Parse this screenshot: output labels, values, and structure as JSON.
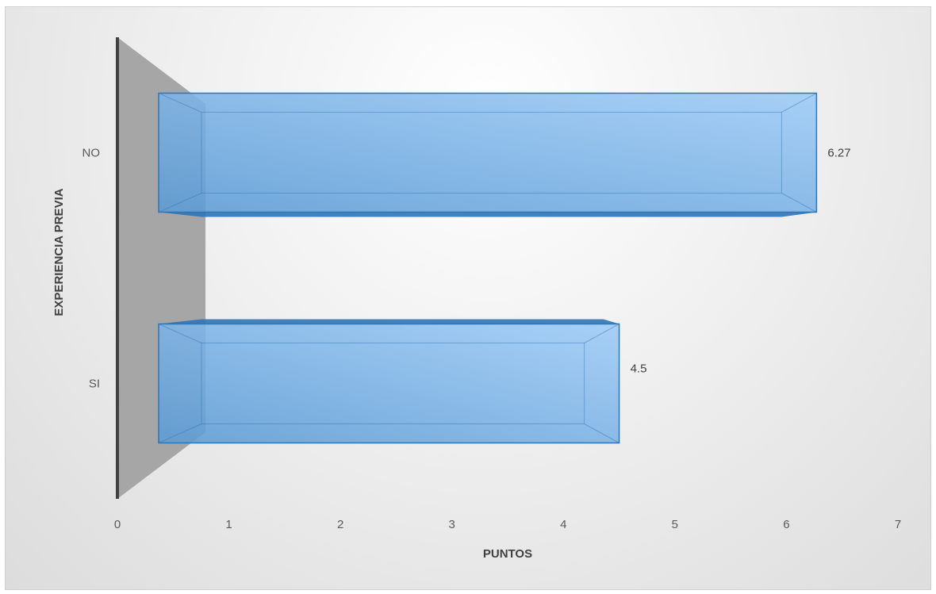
{
  "chart_data": {
    "type": "bar",
    "orientation": "horizontal",
    "style": "3d-clustered-bar",
    "categories": [
      "SI",
      "NO"
    ],
    "series": [
      {
        "values": [
          4.5,
          6.27
        ]
      }
    ],
    "data_labels": [
      "4.5",
      "6.27"
    ],
    "xlabel": "PUNTOS",
    "ylabel": "EXPERIENCIA PREVIA",
    "xlim": [
      0,
      7
    ],
    "x_ticks": [
      "0",
      "1",
      "2",
      "3",
      "4",
      "5",
      "6",
      "7"
    ],
    "grid": false,
    "legend": "none",
    "colors": {
      "bar_front": "#5b9bd5",
      "bar_light": "#9dcbf7",
      "bar_edge": "#2e75b6",
      "side_wall": "#a6a6a6",
      "axis_line": "#404040"
    }
  }
}
